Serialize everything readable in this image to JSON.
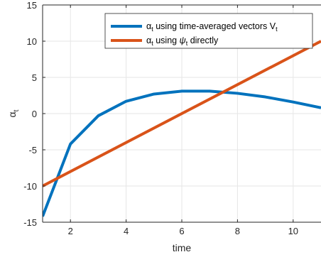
{
  "chart_data": {
    "type": "line",
    "xlabel": "time",
    "ylabel_base": "α",
    "ylabel_sub": "t",
    "xlim": [
      1,
      11
    ],
    "ylim": [
      -15,
      15
    ],
    "xticks": [
      2,
      4,
      6,
      8,
      10
    ],
    "yticks": [
      -15,
      -10,
      -5,
      0,
      5,
      10,
      15
    ],
    "xtick_labels": [
      "2",
      "4",
      "6",
      "8",
      "10"
    ],
    "ytick_labels": [
      "-15",
      "-10",
      "-5",
      "0",
      "5",
      "10",
      "15"
    ],
    "grid": true,
    "legend_position": "top-right",
    "series": [
      {
        "legend_parts": [
          "α",
          "t",
          " using time-averaged vectors V",
          "t"
        ],
        "color": "#0072BD",
        "x": [
          1,
          2,
          3,
          4,
          5,
          6,
          7,
          8,
          9,
          10,
          11
        ],
        "y": [
          -14.2,
          -4.2,
          -0.3,
          1.7,
          2.7,
          3.1,
          3.1,
          2.8,
          2.3,
          1.6,
          0.8
        ]
      },
      {
        "legend_parts": [
          "α",
          "t",
          " using ",
          "ψ",
          "t",
          " directly"
        ],
        "color": "#D95319",
        "x": [
          1,
          11
        ],
        "y": [
          -10,
          10
        ]
      }
    ]
  }
}
